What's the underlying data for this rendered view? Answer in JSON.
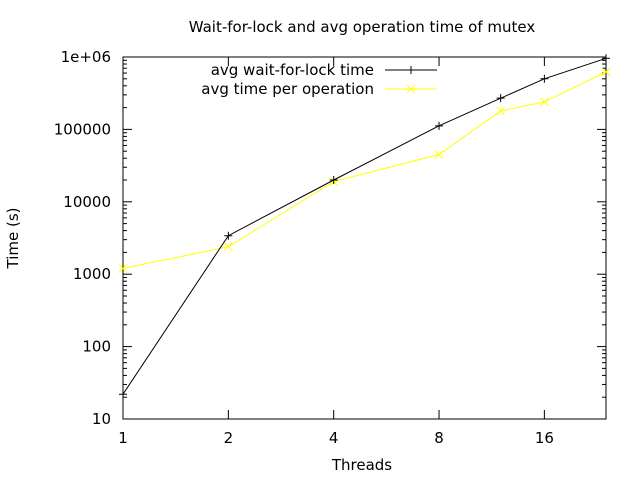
{
  "chart_data": {
    "type": "line",
    "title": "Wait-for-lock and avg operation time of mutex",
    "xlabel": "Threads",
    "ylabel": "Time (s)",
    "x_scale": "log2",
    "y_scale": "log10",
    "xlim": [
      1,
      24
    ],
    "ylim": [
      10,
      1000000
    ],
    "x_ticks": [
      1,
      2,
      4,
      8,
      16
    ],
    "x_tick_labels": [
      "1",
      "2",
      "4",
      "8",
      "16"
    ],
    "y_ticks": [
      10,
      100,
      1000,
      10000,
      100000,
      1000000
    ],
    "y_tick_labels": [
      "10",
      "100",
      "1000",
      "10000",
      "100000",
      "1e+06"
    ],
    "grid": false,
    "legend_position": "top-left",
    "x": [
      1,
      2,
      4,
      8,
      12,
      16,
      24
    ],
    "series": [
      {
        "name": "avg wait-for-lock time",
        "color": "#000000",
        "marker": "plus",
        "values": [
          22,
          3400,
          20000,
          112000,
          270000,
          500000,
          960000
        ]
      },
      {
        "name": "avg time per operation",
        "color": "#ffff00",
        "marker": "cross",
        "values": [
          1200,
          2400,
          19000,
          45000,
          180000,
          240000,
          620000
        ]
      }
    ]
  }
}
